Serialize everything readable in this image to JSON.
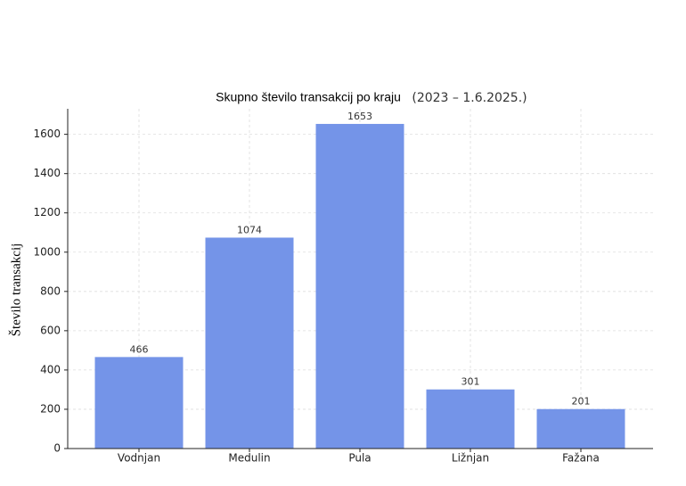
{
  "chart_data": {
    "type": "bar",
    "title": "Skupno število transakcij po kraju",
    "subtitle": "(2023 – 1.6.2025.)",
    "y_label": "Število transakcij",
    "categories": [
      "Vodnjan",
      "Medulin",
      "Pula",
      "Ližnjan",
      "Fažana"
    ],
    "values": [
      466,
      1074,
      1653,
      301,
      201
    ],
    "color": "#7494e8",
    "ylim": [
      0,
      1730
    ],
    "yticks": [
      0,
      200,
      400,
      600,
      800,
      1000,
      1200,
      1400,
      1600
    ],
    "grid": true
  }
}
